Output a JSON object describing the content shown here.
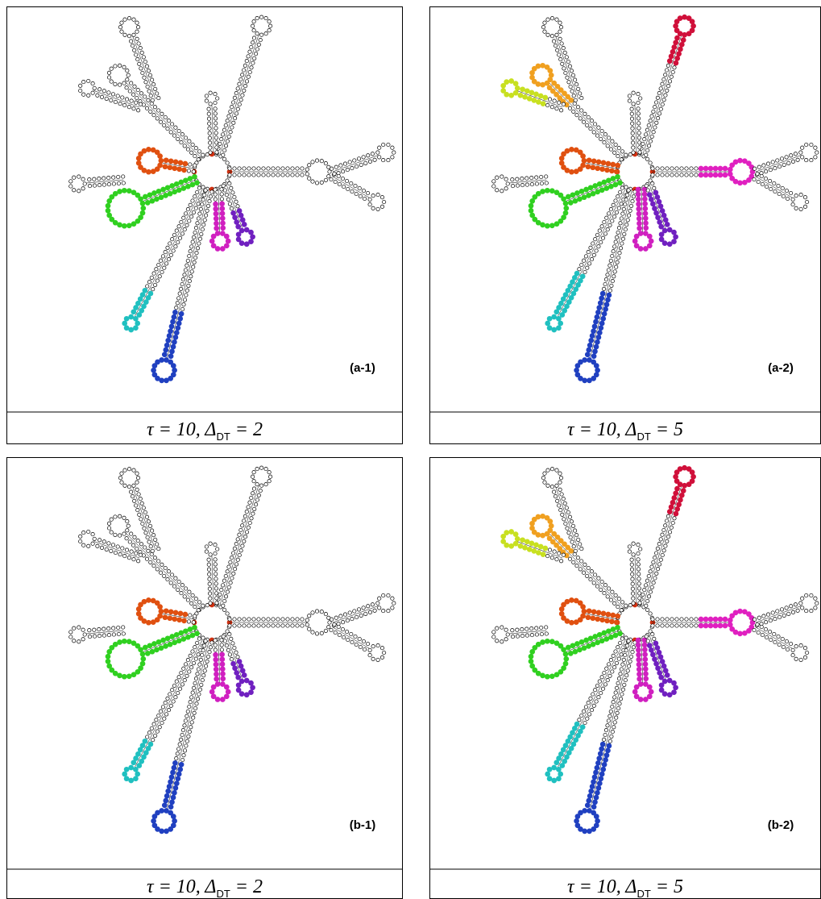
{
  "panels": [
    {
      "label": "(a-1)",
      "caption": {
        "lead": "τ = 10, Δ",
        "sub": "DT",
        "tail": "= 2"
      }
    },
    {
      "label": "(a-2)",
      "caption": {
        "lead": "τ = 10, Δ",
        "sub": "DT",
        "tail": "= 5"
      }
    },
    {
      "label": "(b-1)",
      "caption": {
        "lead": "τ = 10, Δ",
        "sub": "DT",
        "tail": "= 2"
      }
    },
    {
      "label": "(b-2)",
      "caption": {
        "lead": "τ = 10, Δ",
        "sub": "DT",
        "tail": "= 5"
      }
    }
  ]
}
